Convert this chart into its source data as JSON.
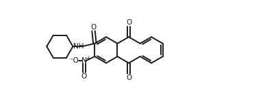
{
  "bg_color": "#ffffff",
  "line_color": "#1a1a1a",
  "line_width": 1.4,
  "dpi": 100,
  "figsize": [
    3.87,
    1.54
  ],
  "xlim": [
    0,
    10.5
  ],
  "ylim": [
    0,
    4.0
  ]
}
